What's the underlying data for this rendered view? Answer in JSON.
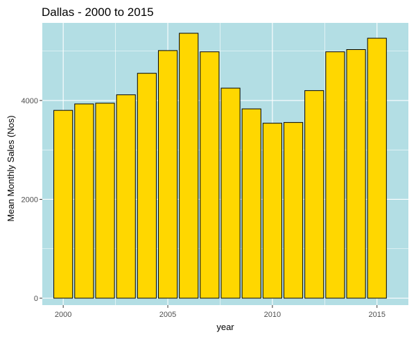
{
  "chart_data": {
    "type": "bar",
    "title": "Dallas - 2000 to 2015",
    "xlabel": "year",
    "ylabel": "Mean Monthly Sales (Nos)",
    "x": [
      2000,
      2001,
      2002,
      2003,
      2004,
      2005,
      2006,
      2007,
      2008,
      2009,
      2010,
      2011,
      2012,
      2013,
      2014,
      2015
    ],
    "values": [
      3800,
      3930,
      3945,
      4115,
      4550,
      5010,
      5360,
      4985,
      4250,
      3830,
      3540,
      3555,
      4200,
      4985,
      5030,
      5260
    ],
    "xlim": [
      1999,
      2016.5
    ],
    "ylim": [
      -140,
      5570
    ],
    "x_ticks": [
      "2000",
      "2005",
      "2010",
      "2015"
    ],
    "y_ticks": [
      "0",
      "2000",
      "4000"
    ],
    "grid": true,
    "colors": {
      "panel_background": "#b3dee4",
      "grid": "#ffffff",
      "bar_fill": "#ffd700",
      "bar_stroke": "#000000"
    }
  }
}
